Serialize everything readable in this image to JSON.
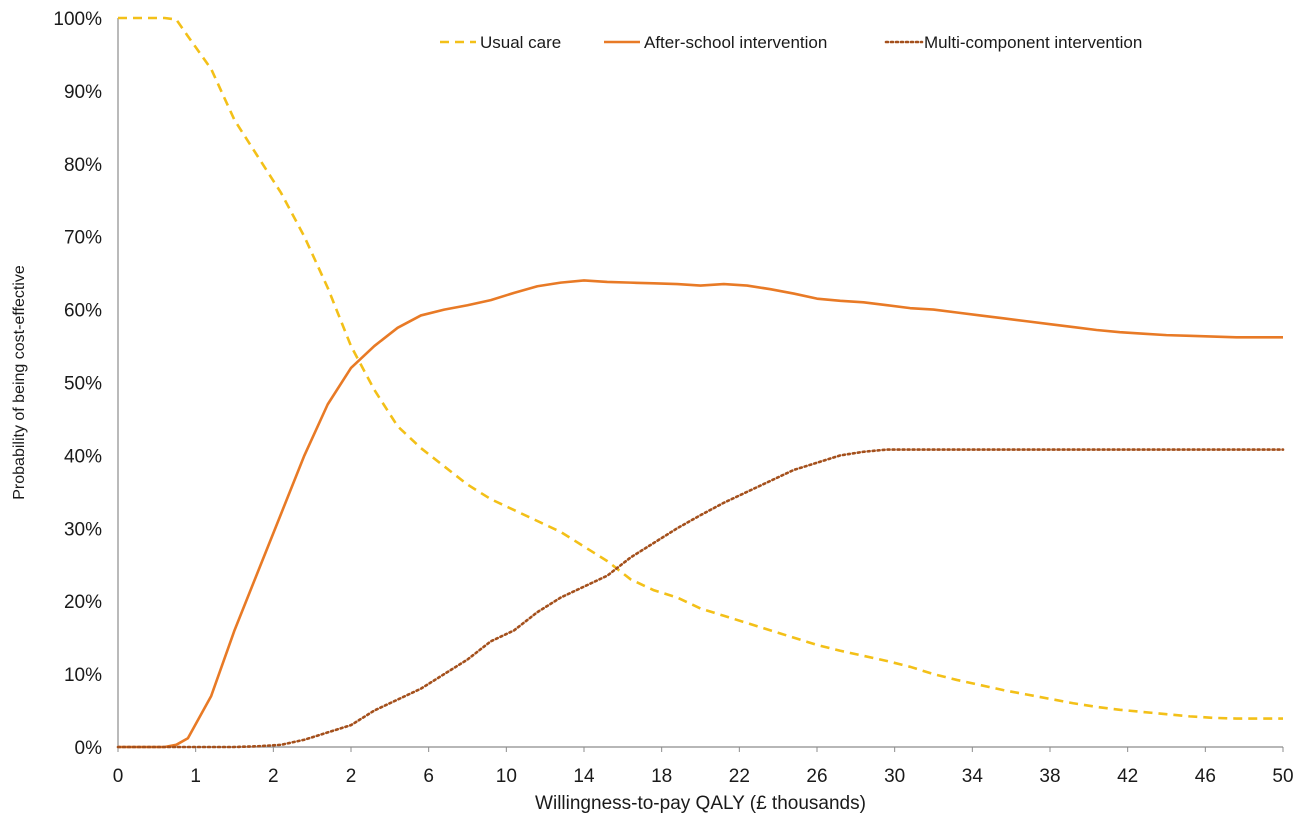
{
  "chart_data": {
    "type": "line",
    "xlabel": "Willingness-to-pay QALY (£ thousands)",
    "ylabel": "Probability of being cost-effective",
    "x_ticks": [
      "0",
      "1",
      "2",
      "2",
      "6",
      "10",
      "14",
      "18",
      "22",
      "26",
      "30",
      "34",
      "38",
      "42",
      "46",
      "50"
    ],
    "y_ticks": [
      "0%",
      "10%",
      "20%",
      "30%",
      "40%",
      "50%",
      "60%",
      "70%",
      "80%",
      "90%",
      "100%"
    ],
    "ylim": [
      0,
      100
    ],
    "grid": false,
    "legend_position": "top-right",
    "series": [
      {
        "name": "Usual care",
        "color": "#F3C018",
        "style": "dashed",
        "x": [
          0,
          1,
          2,
          2.5,
          3,
          4,
          5,
          6,
          7,
          8,
          9,
          10,
          11,
          12,
          13,
          14,
          15,
          16,
          17,
          18,
          19,
          20,
          21,
          22,
          23,
          24,
          25,
          26,
          27,
          28,
          29,
          30,
          31,
          32,
          33,
          34,
          35,
          36,
          37,
          38,
          39,
          40,
          41,
          42,
          43,
          44,
          45,
          46,
          47,
          48,
          49,
          50
        ],
        "values": [
          100,
          100,
          100,
          99.8,
          97.5,
          93,
          86,
          81,
          76,
          70,
          63,
          55,
          49,
          44,
          41,
          38.5,
          36,
          34,
          32.5,
          31,
          29.5,
          27.5,
          25.5,
          23,
          21.5,
          20.5,
          19,
          18,
          17,
          16,
          15,
          14,
          13.2,
          12.5,
          11.8,
          11,
          10,
          9.2,
          8.5,
          7.8,
          7.2,
          6.6,
          6,
          5.5,
          5.1,
          4.8,
          4.5,
          4.2,
          4.0,
          3.9,
          3.9,
          3.9
        ]
      },
      {
        "name": "After-school intervention",
        "color": "#E87A26",
        "style": "solid",
        "x": [
          0,
          1,
          2,
          2.5,
          3,
          4,
          5,
          6,
          7,
          8,
          9,
          10,
          11,
          12,
          13,
          14,
          15,
          16,
          17,
          18,
          19,
          20,
          21,
          22,
          23,
          24,
          25,
          26,
          27,
          28,
          29,
          30,
          31,
          32,
          33,
          34,
          35,
          36,
          37,
          38,
          39,
          40,
          41,
          42,
          43,
          44,
          45,
          46,
          47,
          48,
          49,
          50
        ],
        "values": [
          0,
          0,
          0,
          0.3,
          1.2,
          7,
          16,
          24,
          32,
          40,
          47,
          52,
          55,
          57.5,
          59.2,
          60,
          60.6,
          61.3,
          62.3,
          63.2,
          63.7,
          64,
          63.8,
          63.7,
          63.6,
          63.5,
          63.3,
          63.5,
          63.3,
          62.8,
          62.2,
          61.5,
          61.2,
          61,
          60.6,
          60.2,
          60,
          59.6,
          59.2,
          58.8,
          58.4,
          58,
          57.6,
          57.2,
          56.9,
          56.7,
          56.5,
          56.4,
          56.3,
          56.2,
          56.2,
          56.2
        ]
      },
      {
        "name": "Multi-component intervention",
        "color": "#A4501C",
        "style": "dotted",
        "x": [
          0,
          1,
          2,
          2.5,
          3,
          4,
          5,
          6,
          7,
          8,
          9,
          10,
          11,
          12,
          13,
          14,
          15,
          16,
          17,
          18,
          19,
          20,
          21,
          22,
          23,
          24,
          25,
          26,
          27,
          28,
          29,
          30,
          31,
          32,
          33,
          34,
          35,
          36,
          37,
          38,
          39,
          40,
          41,
          42,
          43,
          44,
          45,
          46,
          47,
          48,
          49,
          50
        ],
        "values": [
          0,
          0,
          0,
          0,
          0,
          0,
          0,
          0.1,
          0.3,
          1,
          2,
          3,
          5,
          6.5,
          8,
          10,
          12,
          14.5,
          16,
          18.5,
          20.5,
          22,
          23.5,
          26,
          28,
          30,
          31.8,
          33.5,
          35,
          36.5,
          38,
          39,
          40,
          40.5,
          40.8,
          40.8,
          40.8,
          40.8,
          40.8,
          40.8,
          40.8,
          40.8,
          40.8,
          40.8,
          40.8,
          40.8,
          40.8,
          40.8,
          40.8,
          40.8,
          40.8,
          40.8
        ]
      }
    ]
  }
}
